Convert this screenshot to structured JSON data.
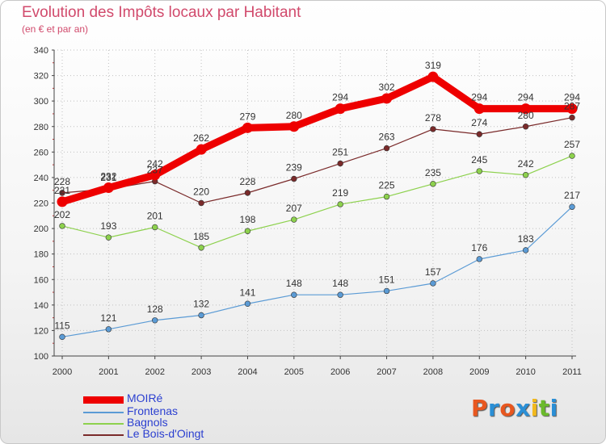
{
  "header": {
    "title": "Evolution des Impôts locaux par Habitant",
    "subtitle": "(en € et par an)"
  },
  "logo": {
    "text": "Proxiti",
    "colors": [
      "#e8571f",
      "#2a8fd6",
      "#e8571f",
      "#2a8fd6",
      "#f2b91d",
      "#6aba2b",
      "#2a8fd6"
    ]
  },
  "chart_data": {
    "type": "line",
    "categories": [
      "2000",
      "2001",
      "2002",
      "2003",
      "2004",
      "2005",
      "2006",
      "2007",
      "2008",
      "2009",
      "2010",
      "2011"
    ],
    "ylim": [
      100,
      340
    ],
    "yticks": [
      100,
      120,
      140,
      160,
      180,
      200,
      220,
      240,
      260,
      280,
      300,
      320,
      340
    ],
    "grid": "dotted",
    "legend_position": "bottom-left",
    "series": [
      {
        "name": "MOIRé",
        "color": "#ee0000",
        "values": [
          221,
          232,
          242,
          262,
          279,
          280,
          294,
          302,
          319,
          294,
          294,
          294
        ],
        "labels": [
          "221",
          "232",
          "242",
          "262",
          "279",
          "280",
          "294",
          "302",
          "319",
          "294",
          "294",
          "294"
        ]
      },
      {
        "name": "Frontenas",
        "color": "#5b9bd5",
        "values": [
          115,
          121,
          128,
          132,
          141,
          148,
          148,
          151,
          157,
          176,
          183,
          217
        ],
        "labels": [
          "115",
          "121",
          "128",
          "132",
          "141",
          "148",
          "148",
          "151",
          "157",
          "176",
          "183",
          "217"
        ]
      },
      {
        "name": "Bagnols",
        "color": "#8dd14d",
        "values": [
          202,
          193,
          201,
          185,
          198,
          207,
          219,
          225,
          235,
          245,
          242,
          257
        ],
        "labels": [
          "202",
          "193",
          "201",
          "185",
          "198",
          "207",
          "219",
          "225",
          "235",
          "245",
          "242",
          "257"
        ]
      },
      {
        "name": "Le Bois-d'Oingt",
        "color": "#7a2a2a",
        "values": [
          228,
          231,
          237,
          220,
          228,
          239,
          251,
          263,
          278,
          274,
          280,
          287
        ],
        "labels": [
          "228",
          "231",
          "237",
          "220",
          "228",
          "239",
          "251",
          "263",
          "278",
          "274",
          "280",
          "287"
        ]
      }
    ]
  }
}
